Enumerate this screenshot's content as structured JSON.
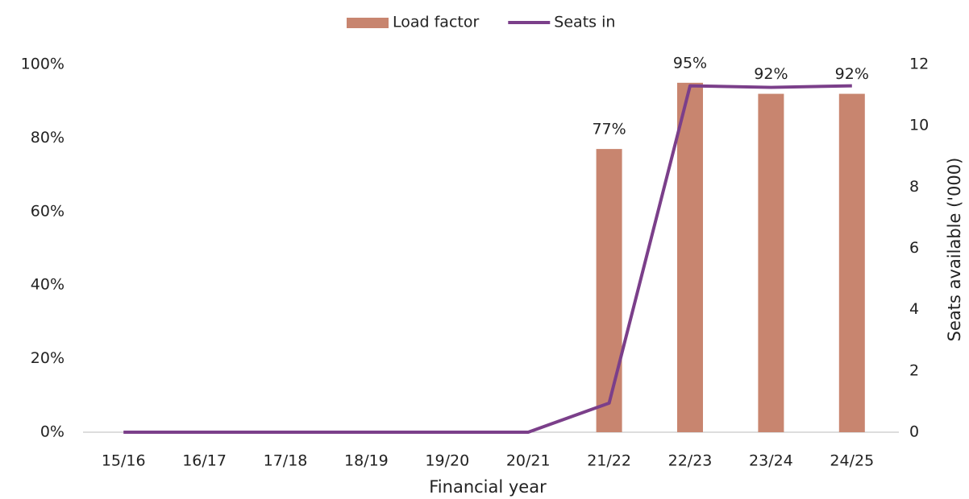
{
  "chart_data": {
    "type": "bar",
    "categories": [
      "15/16",
      "16/17",
      "17/18",
      "18/19",
      "19/20",
      "20/21",
      "21/22",
      "22/23",
      "23/24",
      "24/25"
    ],
    "series": [
      {
        "name": "Load factor",
        "type": "bar",
        "color": "#c8856f",
        "values": [
          null,
          null,
          null,
          null,
          null,
          null,
          77,
          95,
          92,
          92
        ],
        "value_labels": [
          null,
          null,
          null,
          null,
          null,
          null,
          "77%",
          "95%",
          "92%",
          "92%"
        ]
      },
      {
        "name": "Seats in",
        "type": "line",
        "axis": "y2",
        "color": "#7b3f8a",
        "values": [
          0,
          0,
          0,
          0,
          0,
          0,
          0.95,
          11.3,
          11.25,
          11.3
        ]
      }
    ],
    "xlabel": "Financial year",
    "y2label": "Seats available ('000)",
    "ylim": [
      0,
      100
    ],
    "yticks": [
      {
        "value": 0,
        "label": "0%"
      },
      {
        "value": 20,
        "label": "20%"
      },
      {
        "value": 40,
        "label": "40%"
      },
      {
        "value": 60,
        "label": "60%"
      },
      {
        "value": 80,
        "label": "80%"
      },
      {
        "value": 100,
        "label": "100%"
      }
    ],
    "y2lim": [
      0,
      12
    ],
    "y2ticks": [
      0,
      2,
      4,
      6,
      8,
      10,
      12
    ],
    "grid": false,
    "legend": "top"
  }
}
